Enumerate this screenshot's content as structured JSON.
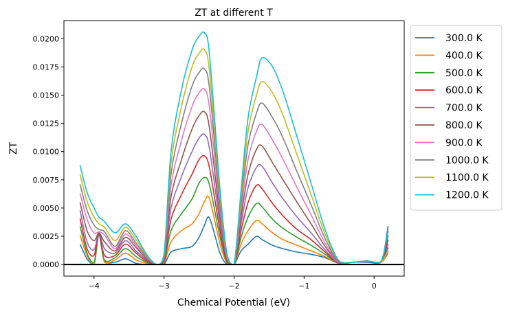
{
  "chart_data": {
    "type": "line",
    "title": "ZT at different T",
    "xlabel": "Chemical Potential (eV)",
    "ylabel": "ZT",
    "xlim": [
      -4.43,
      0.43
    ],
    "ylim": [
      -0.00103,
      0.0216
    ],
    "xticks": [
      -4,
      -3,
      -2,
      -1,
      0
    ],
    "xtick_labels": [
      "−4",
      "−3",
      "−2",
      "−1",
      "0"
    ],
    "yticks": [
      0,
      0.0025,
      0.005,
      0.0075,
      0.01,
      0.0125,
      0.015,
      0.0175,
      0.02
    ],
    "ytick_labels": [
      "0.0000",
      "0.0025",
      "0.0050",
      "0.0075",
      "0.0100",
      "0.0125",
      "0.0150",
      "0.0175",
      "0.0200"
    ],
    "grid": false,
    "legend_placement": "outside-right",
    "hline_y": 0,
    "x": [
      -4.2,
      -4.1,
      -4.0,
      -3.93,
      -3.85,
      -3.7,
      -3.55,
      -3.4,
      -3.25,
      -3.1,
      -3.0,
      -2.9,
      -2.75,
      -2.6,
      -2.5,
      -2.42,
      -2.35,
      -2.2,
      -2.1,
      -2.0,
      -1.9,
      -1.8,
      -1.68,
      -1.6,
      -1.45,
      -1.3,
      -1.1,
      -0.9,
      -0.7,
      -0.5,
      -0.3,
      -0.1,
      0.1,
      0.2
    ],
    "series": [
      {
        "name": "300.0 K",
        "color": "#1f77b4",
        "values": [
          0.0018,
          0.0005,
          0,
          0.0026,
          0.0003,
          0.0002,
          0.0005,
          0.0001,
          0,
          0,
          0,
          0.0011,
          0.0014,
          0.0016,
          0.0024,
          0.0035,
          0.0041,
          0.001,
          0,
          0,
          0.0012,
          0.0018,
          0.0025,
          0.0022,
          0.0017,
          0.0014,
          0.0011,
          0.0009,
          0.0006,
          0.0001,
          0.0002,
          0.0002,
          0.0002,
          0.0034
        ]
      },
      {
        "name": "400.0 K",
        "color": "#ff7f0e",
        "values": [
          0.0026,
          0.0008,
          0,
          0.0027,
          0.0002,
          0.0004,
          0.001,
          0.0004,
          0.0001,
          0,
          0.0001,
          0.002,
          0.003,
          0.0036,
          0.0045,
          0.0056,
          0.0058,
          0.0018,
          0.0001,
          0,
          0.0018,
          0.003,
          0.0039,
          0.0036,
          0.0028,
          0.0022,
          0.0017,
          0.0012,
          0.0007,
          0.0001,
          0.0002,
          0.0003,
          0.0002,
          0.0029
        ]
      },
      {
        "name": "500.0 K",
        "color": "#2ca02c",
        "values": [
          0.0034,
          0.001,
          0.0002,
          0.0027,
          0.0004,
          0.0006,
          0.0014,
          0.0007,
          0.0002,
          0,
          0.0002,
          0.003,
          0.0045,
          0.0058,
          0.0072,
          0.0077,
          0.007,
          0.0024,
          0.0002,
          0,
          0.0024,
          0.0042,
          0.0054,
          0.0051,
          0.004,
          0.0032,
          0.0024,
          0.0017,
          0.0009,
          0.0001,
          0.0002,
          0.0003,
          0.0002,
          0.0026
        ]
      },
      {
        "name": "600.0 K",
        "color": "#d62728",
        "values": [
          0.0041,
          0.0014,
          0.0008,
          0.0027,
          0.0008,
          0.0008,
          0.0018,
          0.001,
          0.0003,
          0,
          0.0003,
          0.004,
          0.0062,
          0.008,
          0.0093,
          0.0096,
          0.0085,
          0.003,
          0.0003,
          0,
          0.003,
          0.0055,
          0.007,
          0.0067,
          0.0054,
          0.0043,
          0.0031,
          0.0022,
          0.0011,
          0.0001,
          0.0002,
          0.0003,
          0.0002,
          0.0022
        ]
      },
      {
        "name": "700.0 K",
        "color": "#9467bd",
        "values": [
          0.0048,
          0.002,
          0.0013,
          0.0028,
          0.0014,
          0.001,
          0.0021,
          0.0012,
          0.0004,
          0,
          0.0004,
          0.005,
          0.0078,
          0.01,
          0.0112,
          0.0115,
          0.0102,
          0.0036,
          0.0004,
          0,
          0.0036,
          0.0068,
          0.0086,
          0.0087,
          0.0072,
          0.0058,
          0.0042,
          0.0028,
          0.0013,
          0.0001,
          0.0002,
          0.0003,
          0.0002,
          0.0018
        ]
      },
      {
        "name": "800.0 K",
        "color": "#8c564b",
        "values": [
          0.0055,
          0.003,
          0.0021,
          0.0028,
          0.002,
          0.0012,
          0.0024,
          0.0015,
          0.0005,
          0,
          0.0005,
          0.006,
          0.0093,
          0.012,
          0.0132,
          0.0135,
          0.012,
          0.0042,
          0.0005,
          0,
          0.0042,
          0.008,
          0.0102,
          0.0105,
          0.009,
          0.0075,
          0.0055,
          0.0036,
          0.0016,
          0.0002,
          0.0002,
          0.0003,
          0.0002,
          0.0015
        ]
      },
      {
        "name": "900.0 K",
        "color": "#e377c2",
        "values": [
          0.0063,
          0.004,
          0.0028,
          0.0029,
          0.0026,
          0.0014,
          0.0027,
          0.0017,
          0.0006,
          0,
          0.0006,
          0.007,
          0.011,
          0.014,
          0.0152,
          0.0155,
          0.0138,
          0.0048,
          0.0006,
          0,
          0.0048,
          0.0093,
          0.0118,
          0.0124,
          0.011,
          0.0093,
          0.0068,
          0.0044,
          0.0019,
          0.0002,
          0.0002,
          0.0003,
          0.0002,
          0.0012
        ]
      },
      {
        "name": "1000.0 K",
        "color": "#7f7f7f",
        "values": [
          0.0071,
          0.0048,
          0.0035,
          0.0031,
          0.0029,
          0.0016,
          0.003,
          0.0019,
          0.0007,
          0,
          0.0007,
          0.008,
          0.0125,
          0.0158,
          0.017,
          0.0173,
          0.0155,
          0.0054,
          0.0007,
          0,
          0.0054,
          0.0106,
          0.0134,
          0.0143,
          0.013,
          0.0112,
          0.0082,
          0.0053,
          0.0023,
          0.0002,
          0.0002,
          0.0003,
          0.0002,
          0.001
        ]
      },
      {
        "name": "1100.0 K",
        "color": "#bcbd22",
        "values": [
          0.008,
          0.0056,
          0.0042,
          0.0036,
          0.0033,
          0.0021,
          0.0033,
          0.0022,
          0.0008,
          0,
          0.0008,
          0.009,
          0.014,
          0.0175,
          0.0187,
          0.019,
          0.017,
          0.006,
          0.0008,
          0,
          0.006,
          0.0118,
          0.015,
          0.0162,
          0.0152,
          0.0132,
          0.0097,
          0.0062,
          0.0027,
          0.0003,
          0.0002,
          0.0003,
          0.0002,
          0.0013
        ]
      },
      {
        "name": "1200.0 K",
        "color": "#17becf",
        "values": [
          0.0088,
          0.0064,
          0.005,
          0.0042,
          0.0038,
          0.0028,
          0.0036,
          0.0025,
          0.0009,
          0,
          0.0009,
          0.01,
          0.0155,
          0.019,
          0.0202,
          0.0205,
          0.0185,
          0.0066,
          0.0009,
          0,
          0.0066,
          0.013,
          0.0166,
          0.0183,
          0.0175,
          0.0153,
          0.0113,
          0.0072,
          0.0031,
          0.0003,
          0.0002,
          0.0003,
          0.0003,
          0.003
        ]
      }
    ]
  }
}
